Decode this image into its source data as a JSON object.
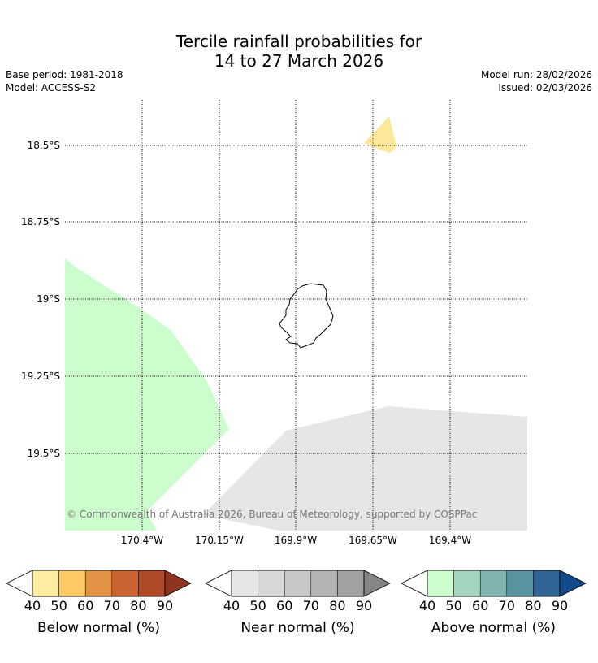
{
  "title_line1": "Tercile rainfall probabilities for",
  "title_line2": "14 to 27 March 2026",
  "base_period": "Base period: 1981-2018",
  "model": "Model: ACCESS-S2",
  "model_run": "Model run: 28/02/2026",
  "issued": "Issued: 02/03/2026",
  "map": {
    "latitude_labels": [
      "18.5°S",
      "18.75°S",
      "19°S",
      "19.25°S",
      "19.5°S"
    ],
    "longitude_labels": [
      "170.4°W",
      "170.15°W",
      "169.9°W",
      "169.65°W",
      "169.4°W"
    ],
    "copyright": "© Commonwealth of Australia 2026, Bureau of Meteorology, supported by COSPPac",
    "colors": {
      "below_50": "#fde89a",
      "above_40_50": "#ccfdcc",
      "near_40_50": "#e6e6e6",
      "coastline": "#000000",
      "gridline": "#000000"
    }
  },
  "colorbars": [
    {
      "label": "Below normal (%)",
      "ticks": [
        "40",
        "50",
        "60",
        "70",
        "80",
        "90"
      ],
      "colors": [
        "#fdeda0",
        "#fdca66",
        "#e29346",
        "#cc6332",
        "#b04a26",
        "#8e3520"
      ]
    },
    {
      "label": "Near normal (%)",
      "ticks": [
        "40",
        "50",
        "60",
        "70",
        "80",
        "90"
      ],
      "colors": [
        "#e6e6e6",
        "#d8d8d8",
        "#c8c8c8",
        "#b4b4b4",
        "#a2a2a2",
        "#858585"
      ]
    },
    {
      "label": "Above normal (%)",
      "ticks": [
        "40",
        "50",
        "60",
        "70",
        "80",
        "90"
      ],
      "colors": [
        "#ccfdcc",
        "#a4d6bf",
        "#7fb4b1",
        "#5a92a0",
        "#306497",
        "#104a88"
      ]
    }
  ]
}
